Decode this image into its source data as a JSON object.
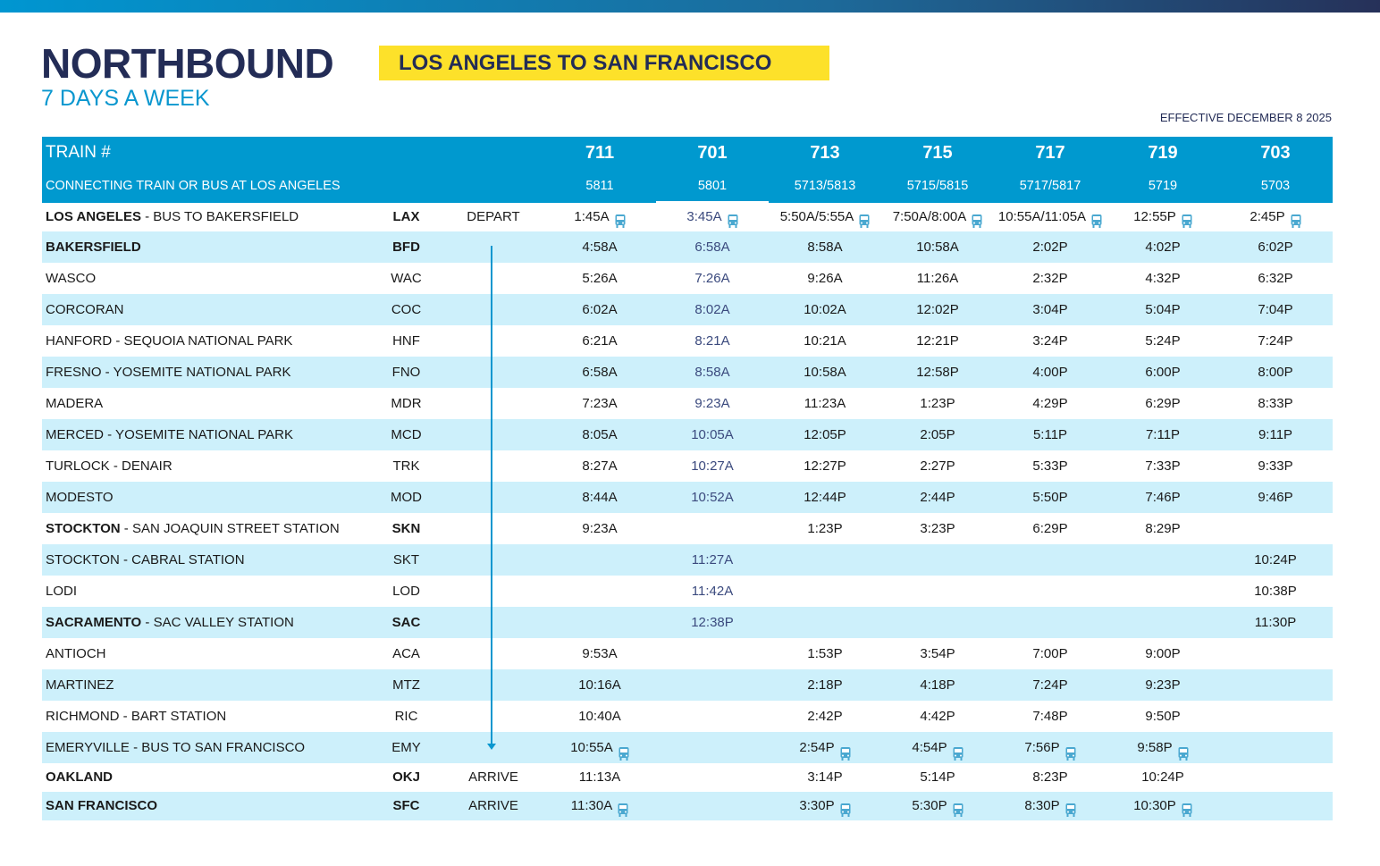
{
  "header": {
    "title": "NORTHBOUND",
    "route": "LOS ANGELES TO SAN FRANCISCO",
    "days": "7 DAYS A WEEK",
    "effective": "EFFECTIVE DECEMBER 8 2025"
  },
  "colors": {
    "primary": "#0099cf",
    "navy": "#232c56",
    "yellow": "#fde12a",
    "row_alt": "#cdf0fb"
  },
  "table": {
    "train_label": "TRAIN #",
    "connect_label": "CONNECTING TRAIN OR BUS AT LOS ANGELES",
    "trains": [
      "711",
      "701",
      "713",
      "715",
      "717",
      "719",
      "703"
    ],
    "connections": [
      "5811",
      "5801",
      "5713/5813",
      "5715/5815",
      "5717/5817",
      "5719",
      "5703"
    ],
    "rows": [
      {
        "bold": "LOS ANGELES",
        "rest": " - BUS TO BAKERSFIELD",
        "code": "LAX",
        "strong": true,
        "action": "DEPART",
        "times": [
          "1:45A",
          "3:45A",
          "5:50A/5:55A",
          "7:50A/8:00A",
          "10:55A/11:05A",
          "12:55P",
          "2:45P"
        ],
        "bus": [
          1,
          1,
          1,
          1,
          1,
          1,
          1
        ]
      },
      {
        "bold": "BAKERSFIELD",
        "rest": "",
        "code": "BFD",
        "strong": true,
        "action": "",
        "times": [
          "4:58A",
          "6:58A",
          "8:58A",
          "10:58A",
          "2:02P",
          "4:02P",
          "6:02P"
        ]
      },
      {
        "bold": "",
        "rest": "WASCO",
        "code": "WAC",
        "action": "",
        "times": [
          "5:26A",
          "7:26A",
          "9:26A",
          "11:26A",
          "2:32P",
          "4:32P",
          "6:32P"
        ]
      },
      {
        "bold": "",
        "rest": "CORCORAN",
        "code": "COC",
        "action": "",
        "times": [
          "6:02A",
          "8:02A",
          "10:02A",
          "12:02P",
          "3:04P",
          "5:04P",
          "7:04P"
        ]
      },
      {
        "bold": "",
        "rest": "HANFORD - SEQUOIA NATIONAL PARK",
        "code": "HNF",
        "action": "",
        "times": [
          "6:21A",
          "8:21A",
          "10:21A",
          "12:21P",
          "3:24P",
          "5:24P",
          "7:24P"
        ]
      },
      {
        "bold": "",
        "rest": "FRESNO - YOSEMITE NATIONAL PARK",
        "code": "FNO",
        "action": "",
        "times": [
          "6:58A",
          "8:58A",
          "10:58A",
          "12:58P",
          "4:00P",
          "6:00P",
          "8:00P"
        ]
      },
      {
        "bold": "",
        "rest": "MADERA",
        "code": "MDR",
        "action": "",
        "times": [
          "7:23A",
          "9:23A",
          "11:23A",
          "1:23P",
          "4:29P",
          "6:29P",
          "8:33P"
        ]
      },
      {
        "bold": "",
        "rest": "MERCED - YOSEMITE NATIONAL PARK",
        "code": "MCD",
        "action": "",
        "times": [
          "8:05A",
          "10:05A",
          "12:05P",
          "2:05P",
          "5:11P",
          "7:11P",
          "9:11P"
        ]
      },
      {
        "bold": "",
        "rest": "TURLOCK - DENAIR",
        "code": "TRK",
        "action": "",
        "times": [
          "8:27A",
          "10:27A",
          "12:27P",
          "2:27P",
          "5:33P",
          "7:33P",
          "9:33P"
        ]
      },
      {
        "bold": "",
        "rest": "MODESTO",
        "code": "MOD",
        "action": "",
        "times": [
          "8:44A",
          "10:52A",
          "12:44P",
          "2:44P",
          "5:50P",
          "7:46P",
          "9:46P"
        ]
      },
      {
        "bold": "STOCKTON",
        "rest": " - SAN JOAQUIN STREET STATION",
        "code": "SKN",
        "strong": true,
        "action": "",
        "times": [
          "9:23A",
          "",
          "1:23P",
          "3:23P",
          "6:29P",
          "8:29P",
          ""
        ]
      },
      {
        "bold": "",
        "rest": "STOCKTON - CABRAL STATION",
        "code": "SKT",
        "action": "",
        "times": [
          "",
          "11:27A",
          "",
          "",
          "",
          "",
          "10:24P"
        ]
      },
      {
        "bold": "",
        "rest": "LODI",
        "code": "LOD",
        "action": "",
        "times": [
          "",
          "11:42A",
          "",
          "",
          "",
          "",
          "10:38P"
        ]
      },
      {
        "bold": "SACRAMENTO",
        "rest": " - SAC VALLEY STATION",
        "code": "SAC",
        "strong": true,
        "action": "",
        "times": [
          "",
          "12:38P",
          "",
          "",
          "",
          "",
          "11:30P"
        ]
      },
      {
        "bold": "",
        "rest": "ANTIOCH",
        "code": "ACA",
        "action": "",
        "times": [
          "9:53A",
          "",
          "1:53P",
          "3:54P",
          "7:00P",
          "9:00P",
          ""
        ]
      },
      {
        "bold": "",
        "rest": "MARTINEZ",
        "code": "MTZ",
        "action": "",
        "times": [
          "10:16A",
          "",
          "2:18P",
          "4:18P",
          "7:24P",
          "9:23P",
          ""
        ]
      },
      {
        "bold": "",
        "rest": "RICHMOND - BART STATION",
        "code": "RIC",
        "action": "",
        "times": [
          "10:40A",
          "",
          "2:42P",
          "4:42P",
          "7:48P",
          "9:50P",
          ""
        ]
      },
      {
        "bold": "",
        "rest": "EMERYVILLE - BUS TO SAN FRANCISCO",
        "code": "EMY",
        "action": "",
        "times": [
          "10:55A",
          "",
          "2:54P",
          "4:54P",
          "7:56P",
          "9:58P",
          ""
        ],
        "bus": [
          1,
          0,
          1,
          1,
          1,
          1,
          0
        ]
      },
      {
        "bold": "OAKLAND",
        "rest": "",
        "code": "OKJ",
        "strong": true,
        "action": "ARRIVE",
        "times": [
          "11:13A",
          "",
          "3:14P",
          "5:14P",
          "8:23P",
          "10:24P",
          ""
        ]
      },
      {
        "bold": "SAN FRANCISCO",
        "rest": "",
        "code": "SFC",
        "strong": true,
        "action": "ARRIVE",
        "times": [
          "11:30A",
          "",
          "3:30P",
          "5:30P",
          "8:30P",
          "10:30P",
          ""
        ],
        "bus": [
          1,
          0,
          1,
          1,
          1,
          1,
          0
        ]
      }
    ]
  }
}
